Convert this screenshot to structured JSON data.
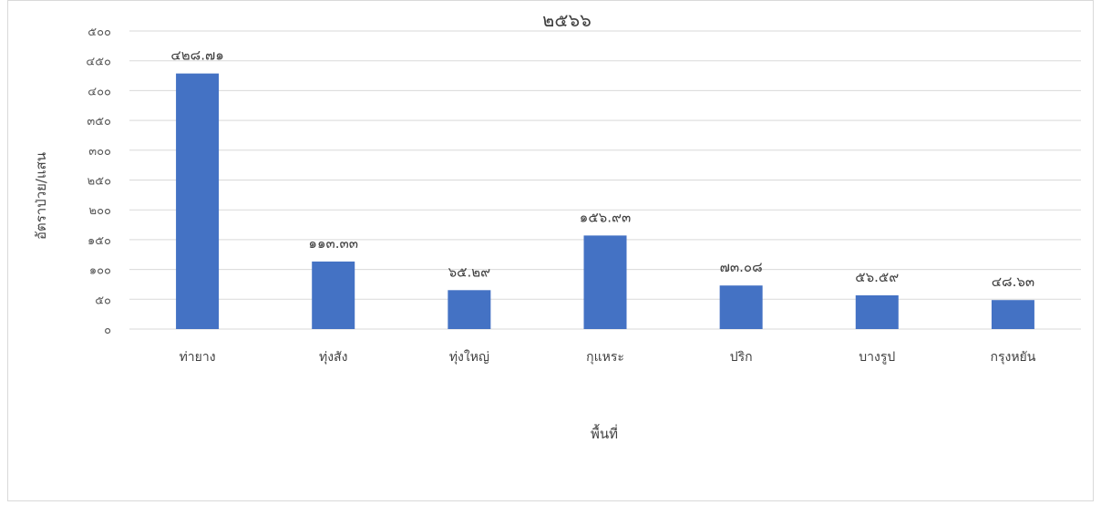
{
  "chart_data": {
    "type": "bar",
    "title": "๒๕๖๖",
    "xlabel": "พื้นที่",
    "ylabel": "อัตราป่วย/แสน",
    "ylim": [
      0,
      500
    ],
    "ytick_values": [
      0,
      50,
      100,
      150,
      200,
      250,
      300,
      350,
      400,
      450,
      500
    ],
    "ytick_labels": [
      "๐",
      "๕๐",
      "๑๐๐",
      "๑๕๐",
      "๒๐๐",
      "๒๕๐",
      "๓๐๐",
      "๓๕๐",
      "๔๐๐",
      "๔๕๐",
      "๕๐๐"
    ],
    "categories": [
      "ท่ายาง",
      "ทุ่งสัง",
      "ทุ่งใหญ่",
      "กุแหระ",
      "ปริก",
      "บางรูป",
      "กรุงหยัน"
    ],
    "values": [
      428.71,
      113.33,
      65.29,
      156.93,
      73.08,
      56.59,
      48.63
    ],
    "data_labels": [
      "๔๒๘.๗๑",
      "๑๑๓.๓๓",
      "๖๕.๒๙",
      "๑๕๖.๙๓",
      "๗๓.๐๘",
      "๕๖.๕๙",
      "๔๘.๖๓"
    ],
    "bar_color": "#4472C4",
    "grid": true,
    "legend": "none"
  }
}
